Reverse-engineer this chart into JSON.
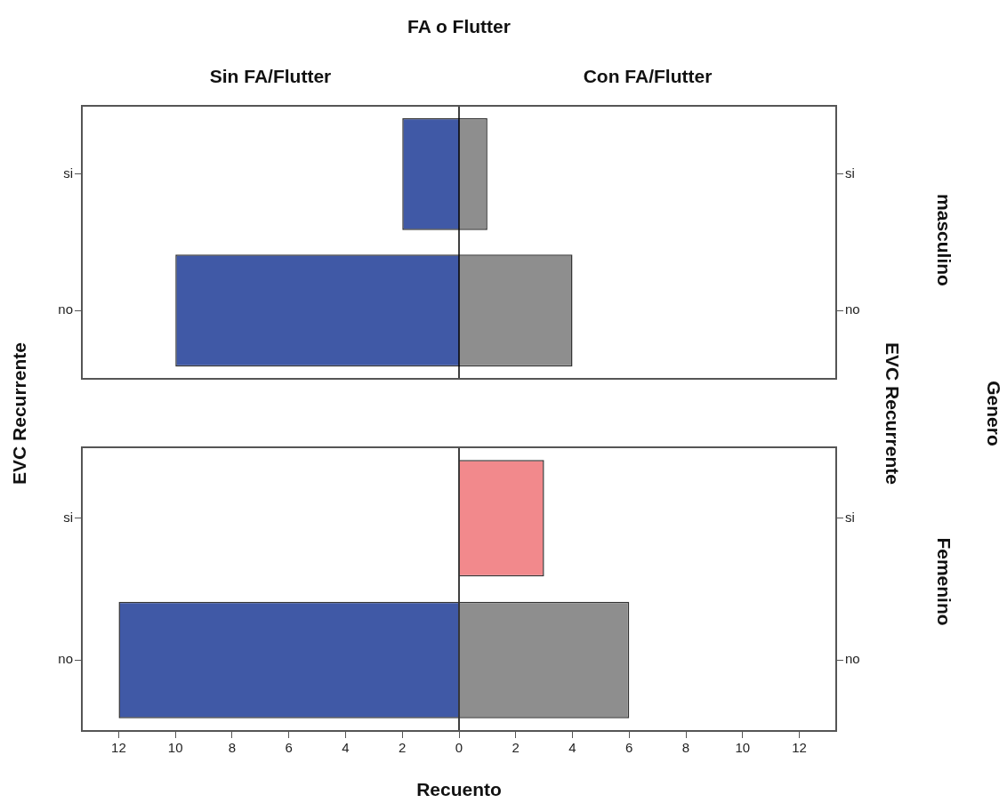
{
  "chart_data": [
    {
      "type": "bar",
      "orientation": "horizontal",
      "stacked": true,
      "legend_title": "FA o Flutter",
      "ylabel": "EVC Recurrente",
      "y2label": "EVC Recurrente",
      "annotations": [
        "masculino",
        "Genero"
      ],
      "categories": [
        "si",
        "no"
      ],
      "series": [
        {
          "name": "Sin FA/Flutter",
          "color": "#4059a6",
          "values": [
            -2,
            -10
          ]
        },
        {
          "name": "Con FA/Flutter",
          "color": "#8e8e8e",
          "values": [
            1,
            4
          ]
        }
      ],
      "xlim": [
        -13.3,
        13.3
      ],
      "tick_labels": "y"
    },
    {
      "type": "bar",
      "orientation": "horizontal",
      "stacked": true,
      "annotations": [
        "Femenino"
      ],
      "xlabel": "Recuento",
      "categories": [
        "si",
        "no"
      ],
      "series": [
        {
          "color": "#4059a6",
          "values": [
            null,
            -12
          ]
        },
        {
          "colors": [
            "#f2898c",
            "#8e8e8e"
          ],
          "values": [
            3,
            6
          ]
        }
      ],
      "xlim": [
        -13.3,
        13.3
      ],
      "xticks": [
        {
          "value": -12,
          "label": "12"
        },
        {
          "value": -10,
          "label": "10"
        },
        {
          "value": -8,
          "label": "8"
        },
        {
          "value": -6,
          "label": "6"
        },
        {
          "value": -4,
          "label": "4"
        },
        {
          "value": -2,
          "label": "2"
        },
        0,
        2,
        4,
        6,
        8,
        10,
        12
      ]
    }
  ]
}
